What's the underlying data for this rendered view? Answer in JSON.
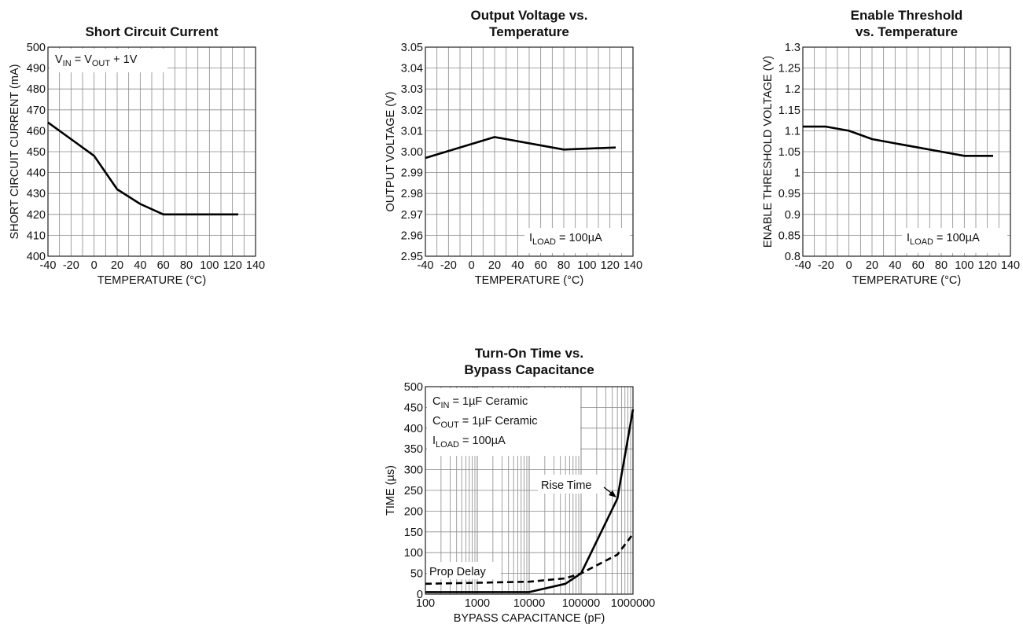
{
  "chart_data": [
    {
      "type": "line",
      "title": "Short Circuit Current",
      "xlabel": "TEMPERATURE (°C)",
      "ylabel": "SHORT CIRCUIT CURRENT (mA)",
      "xlim": [
        -40,
        140
      ],
      "ylim": [
        400,
        500
      ],
      "x_ticks": [
        -40,
        -20,
        0,
        20,
        40,
        60,
        80,
        100,
        120,
        140
      ],
      "y_ticks": [
        400,
        410,
        420,
        430,
        440,
        450,
        460,
        470,
        480,
        490,
        500
      ],
      "grid": true,
      "annotations": [
        {
          "parts": [
            {
              "t": "V"
            },
            {
              "t": "IN",
              "sub": true
            },
            {
              "t": " = V"
            },
            {
              "t": "OUT",
              "sub": true
            },
            {
              "t": " + 1V"
            }
          ],
          "position": "top-left"
        }
      ],
      "series": [
        {
          "x": [
            -40,
            -20,
            0,
            20,
            40,
            60,
            80,
            100,
            125
          ],
          "y": [
            464,
            456,
            448,
            432,
            425,
            420,
            420,
            420,
            420
          ],
          "style": "solid"
        }
      ]
    },
    {
      "type": "line",
      "title": "Output Voltage vs. Temperature",
      "xlabel": "TEMPERATURE (°C)",
      "ylabel": "OUTPUT VOLTAGE (V)",
      "xlim": [
        -40,
        140
      ],
      "ylim": [
        2.95,
        3.05
      ],
      "x_ticks": [
        -40,
        -20,
        0,
        20,
        40,
        60,
        80,
        100,
        120,
        140
      ],
      "y_ticks": [
        "2.95",
        "2.96",
        "2.97",
        "2.98",
        "2.99",
        "3.00",
        "3.01",
        "3.02",
        "3.03",
        "3.04",
        "3.05"
      ],
      "grid": true,
      "annotations": [
        {
          "parts": [
            {
              "t": "I"
            },
            {
              "t": "LOAD",
              "sub": true
            },
            {
              "t": " = 100µA"
            }
          ],
          "position": "bottom-right"
        }
      ],
      "series": [
        {
          "x": [
            -40,
            20,
            80,
            125
          ],
          "y": [
            2.997,
            3.007,
            3.001,
            3.002
          ],
          "style": "solid"
        }
      ]
    },
    {
      "type": "line",
      "title": "Enable Threshold vs. Temperature",
      "xlabel": "TEMPERATURE (°C)",
      "ylabel": "ENABLE THRESHOLD VOLTAGE (V)",
      "xlim": [
        -40,
        140
      ],
      "ylim": [
        0.8,
        1.3
      ],
      "x_ticks": [
        -40,
        -20,
        0,
        20,
        40,
        60,
        80,
        100,
        120,
        140
      ],
      "y_ticks": [
        "0.8",
        "0.85",
        "0.9",
        "0.95",
        "1",
        "1.05",
        "1.1",
        "1.15",
        "1.2",
        "1.25",
        "1.3"
      ],
      "grid": true,
      "annotations": [
        {
          "parts": [
            {
              "t": "I"
            },
            {
              "t": "LOAD",
              "sub": true
            },
            {
              "t": " = 100µA"
            }
          ],
          "position": "bottom-right"
        }
      ],
      "series": [
        {
          "x": [
            -40,
            -20,
            0,
            20,
            40,
            60,
            80,
            100,
            125
          ],
          "y": [
            1.11,
            1.11,
            1.1,
            1.08,
            1.07,
            1.06,
            1.05,
            1.04,
            1.04
          ],
          "style": "solid"
        }
      ]
    },
    {
      "type": "line",
      "title": "Turn-On Time vs. Bypass Capacitance",
      "xlabel": "BYPASS CAPACITANCE (pF)",
      "ylabel": "TIME (µs)",
      "xscale": "log",
      "xlim": [
        100,
        1000000
      ],
      "ylim": [
        0,
        500
      ],
      "x_ticks": [
        100,
        1000,
        10000,
        100000,
        1000000
      ],
      "y_ticks": [
        0,
        50,
        100,
        150,
        200,
        250,
        300,
        350,
        400,
        450,
        500
      ],
      "grid": true,
      "annotations": [
        {
          "parts": [
            {
              "t": "C"
            },
            {
              "t": "IN",
              "sub": true
            },
            {
              "t": " = 1µF Ceramic"
            }
          ],
          "position": "top-left"
        },
        {
          "parts": [
            {
              "t": "C"
            },
            {
              "t": "OUT",
              "sub": true
            },
            {
              "t": " = 1µF Ceramic"
            }
          ],
          "position": "top-left"
        },
        {
          "parts": [
            {
              "t": "I"
            },
            {
              "t": "LOAD",
              "sub": true
            },
            {
              "t": " = 100µA"
            }
          ],
          "position": "top-left"
        }
      ],
      "series": [
        {
          "name": "Rise Time",
          "x": [
            100,
            10000,
            50000,
            100000,
            500000,
            1000000
          ],
          "y": [
            5,
            5,
            25,
            50,
            230,
            445
          ],
          "style": "solid"
        },
        {
          "name": "Prop Delay",
          "x": [
            100,
            10000,
            50000,
            100000,
            500000,
            1000000
          ],
          "y": [
            25,
            30,
            38,
            50,
            95,
            145
          ],
          "style": "dashed"
        }
      ]
    }
  ]
}
